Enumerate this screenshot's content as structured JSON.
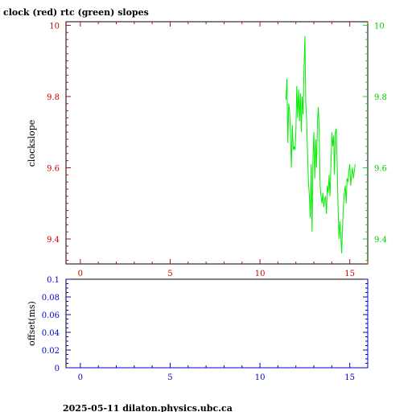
{
  "colors": {
    "clock": "#cc0000",
    "rtc": "#00ee00",
    "offset_axis": "#0000cc",
    "frame": "#000000"
  },
  "footer": "2025-05-11 dilaton.physics.ubc.ca",
  "chart_data": [
    {
      "type": "line",
      "title": "clock (red) rtc (green) slopes",
      "xlabel": "",
      "ylabel": "clockslope",
      "xlim": [
        -0.8,
        16
      ],
      "ylim": [
        9.33,
        10.01
      ],
      "x_ticks": [
        0,
        5,
        10,
        15
      ],
      "y_ticks_left": [
        10,
        9.8,
        9.6,
        9.4
      ],
      "y_ticks_right": [
        10,
        9.8,
        9.6,
        9.4
      ],
      "grid": false,
      "series": [
        {
          "name": "rtc",
          "axis": "right",
          "x": [
            11.45,
            11.5,
            11.55,
            11.6,
            11.65,
            11.7,
            11.75,
            11.8,
            11.85,
            11.9,
            11.95,
            12.0,
            12.05,
            12.1,
            12.15,
            12.2,
            12.25,
            12.3,
            12.35,
            12.4,
            12.45,
            12.5,
            12.55,
            12.6,
            12.65,
            12.7,
            12.75,
            12.8,
            12.85,
            12.9,
            12.95,
            13.0,
            13.05,
            13.1,
            13.15,
            13.2,
            13.25,
            13.3,
            13.35,
            13.4,
            13.45,
            13.5,
            13.55,
            13.6,
            13.65,
            13.7,
            13.75,
            13.8,
            13.85,
            13.9,
            13.95,
            14.0,
            14.05,
            14.1,
            14.15,
            14.2,
            14.25,
            14.3,
            14.35,
            14.4,
            14.45,
            14.5,
            14.55,
            14.6,
            14.65,
            14.7,
            14.75,
            14.8,
            14.85,
            14.9,
            14.95,
            15.0,
            15.05,
            15.1,
            15.15,
            15.2,
            15.25,
            15.3
          ],
          "y": [
            9.79,
            9.85,
            9.67,
            9.78,
            9.76,
            9.7,
            9.6,
            9.72,
            9.65,
            9.66,
            9.65,
            9.7,
            9.83,
            9.74,
            9.82,
            9.73,
            9.81,
            9.7,
            9.8,
            9.75,
            9.88,
            9.97,
            9.78,
            9.73,
            9.64,
            9.56,
            9.52,
            9.46,
            9.61,
            9.42,
            9.62,
            9.7,
            9.57,
            9.68,
            9.6,
            9.73,
            9.77,
            9.7,
            9.55,
            9.52,
            9.5,
            9.53,
            9.49,
            9.51,
            9.52,
            9.47,
            9.55,
            9.53,
            9.58,
            9.52,
            9.6,
            9.7,
            9.66,
            9.69,
            9.58,
            9.7,
            9.71,
            9.6,
            9.48,
            9.4,
            9.45,
            9.41,
            9.36,
            9.44,
            9.5,
            9.53,
            9.55,
            9.5,
            9.57,
            9.56,
            9.59,
            9.61,
            9.55,
            9.58,
            9.6,
            9.57,
            9.59,
            9.61
          ]
        }
      ]
    },
    {
      "type": "line",
      "title": "",
      "xlabel": "",
      "ylabel": "offset(ms)",
      "xlim": [
        -0.8,
        16
      ],
      "ylim": [
        0,
        0.1
      ],
      "x_ticks": [
        0,
        5,
        10,
        15
      ],
      "y_ticks": [
        0.1,
        0.08,
        0.06,
        0.04,
        0.02,
        0
      ],
      "y_tick_labels": [
        "0.1",
        "0.08",
        "0.06",
        "0.04",
        "0.02",
        "0"
      ],
      "grid": false,
      "series": []
    }
  ]
}
